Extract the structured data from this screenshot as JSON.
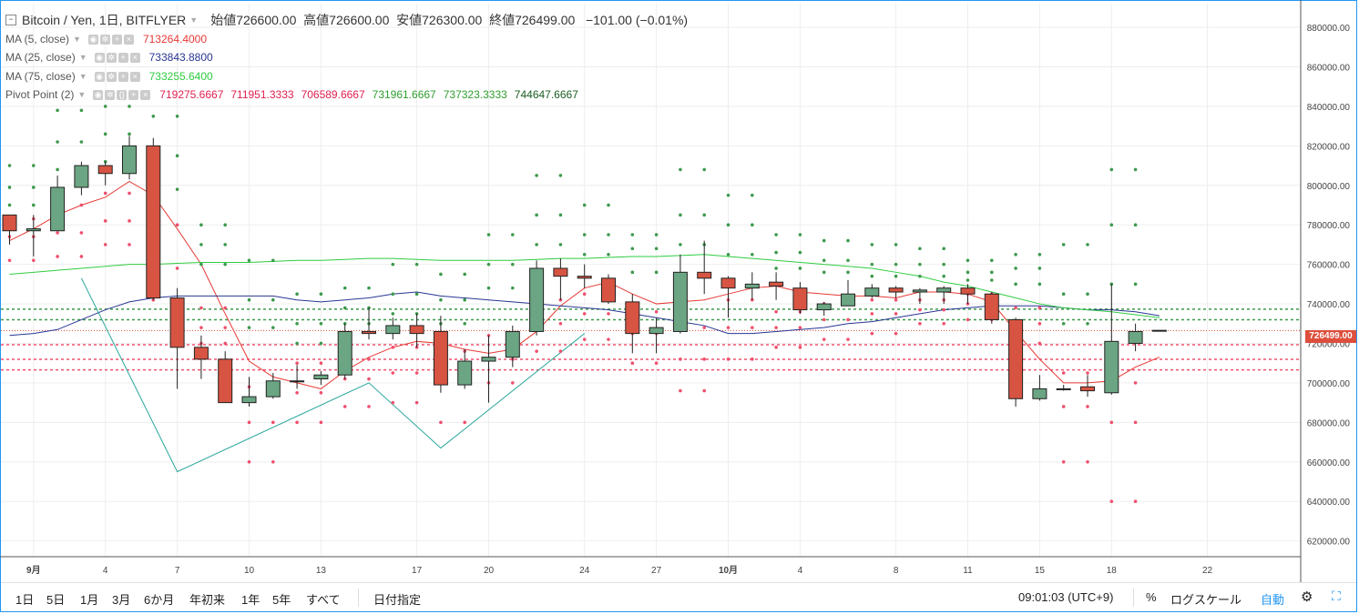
{
  "header": {
    "symbol": "Bitcoin / Yen, 1日, BITFLYER",
    "ohlc": {
      "open_label": "始値",
      "open": "726600.00",
      "high_label": "高値",
      "high": "726600.00",
      "low_label": "安値",
      "low": "726300.00",
      "close_label": "終値",
      "close": "726499.00",
      "change": "−101.00 (−0.01%)"
    }
  },
  "indicators": [
    {
      "name": "MA (5, close)",
      "value": "713264.4000",
      "color": "#e53935"
    },
    {
      "name": "MA (25, close)",
      "value": "733843.8800",
      "color": "#283593"
    },
    {
      "name": "MA (75, close)",
      "value": "733255.6400",
      "color": "#2ecc40"
    }
  ],
  "pivot": {
    "name": "Pivot Point (2)",
    "values": [
      "719275.6667",
      "711951.3333",
      "706589.6667",
      "731961.6667",
      "737323.3333",
      "744647.6667"
    ],
    "colors": [
      "#e0204f",
      "#e0204f",
      "#e0204f",
      "#2e9e2e",
      "#2e9e2e",
      "#1b5e20"
    ]
  },
  "price_tag": "726499.00",
  "chart_data": {
    "type": "candlestick",
    "title": "Bitcoin / Yen, 1日, BITFLYER",
    "ylim": [
      612000,
      892000
    ],
    "y_ticks": [
      620000,
      640000,
      660000,
      680000,
      700000,
      720000,
      740000,
      760000,
      780000,
      800000,
      820000,
      840000,
      860000,
      880000
    ],
    "x_ticks": [
      {
        "label": "9月",
        "i": 1,
        "bold": true
      },
      {
        "label": "4",
        "i": 4
      },
      {
        "label": "7",
        "i": 7
      },
      {
        "label": "10",
        "i": 10
      },
      {
        "label": "13",
        "i": 13
      },
      {
        "label": "17",
        "i": 17
      },
      {
        "label": "20",
        "i": 20
      },
      {
        "label": "24",
        "i": 24
      },
      {
        "label": "27",
        "i": 27
      },
      {
        "label": "10月",
        "i": 30,
        "bold": true
      },
      {
        "label": "4",
        "i": 33
      },
      {
        "label": "8",
        "i": 37
      },
      {
        "label": "11",
        "i": 40
      },
      {
        "label": "15",
        "i": 43
      },
      {
        "label": "18",
        "i": 46
      },
      {
        "label": "22",
        "i": 50
      }
    ],
    "candles": [
      [
        785000,
        785000,
        770000,
        777000
      ],
      [
        777000,
        785000,
        764000,
        778000
      ],
      [
        777000,
        805000,
        777000,
        799000
      ],
      [
        799000,
        812000,
        795000,
        810000
      ],
      [
        810000,
        812000,
        800000,
        806000
      ],
      [
        806000,
        825000,
        803000,
        820000
      ],
      [
        820000,
        824000,
        742000,
        743000
      ],
      [
        743000,
        748000,
        697000,
        718000
      ],
      [
        718000,
        724000,
        702000,
        712000
      ],
      [
        712000,
        716000,
        690000,
        690000
      ],
      [
        690000,
        703000,
        688000,
        693000
      ],
      [
        693000,
        705000,
        692000,
        701000
      ],
      [
        701000,
        709000,
        697000,
        701000
      ],
      [
        702000,
        706000,
        699000,
        704000
      ],
      [
        704000,
        730000,
        702000,
        726000
      ],
      [
        726000,
        738000,
        722000,
        725000
      ],
      [
        725000,
        733000,
        722000,
        729000
      ],
      [
        729000,
        735000,
        718000,
        725000
      ],
      [
        726000,
        734000,
        695000,
        699000
      ],
      [
        699000,
        717000,
        697000,
        711000
      ],
      [
        711000,
        724000,
        690000,
        713000
      ],
      [
        713000,
        729000,
        708000,
        726000
      ],
      [
        726000,
        762000,
        724000,
        758000
      ],
      [
        758000,
        763000,
        742000,
        754000
      ],
      [
        754000,
        760000,
        748000,
        753000
      ],
      [
        753000,
        755000,
        740000,
        741000
      ],
      [
        741000,
        745000,
        715000,
        725000
      ],
      [
        725000,
        733000,
        715000,
        728000
      ],
      [
        726000,
        765000,
        725000,
        756000
      ],
      [
        756000,
        772000,
        745000,
        753000
      ],
      [
        753000,
        754000,
        733000,
        748000
      ],
      [
        748000,
        756000,
        742000,
        750000
      ],
      [
        751000,
        756000,
        742000,
        749000
      ],
      [
        748000,
        751000,
        735000,
        737000
      ],
      [
        737000,
        741000,
        734000,
        740000
      ],
      [
        739000,
        752000,
        739000,
        745000
      ],
      [
        744000,
        750000,
        743000,
        748000
      ],
      [
        748000,
        749000,
        743000,
        746000
      ],
      [
        746000,
        748000,
        740000,
        747000
      ],
      [
        746000,
        749000,
        740000,
        748000
      ],
      [
        748000,
        750000,
        740000,
        745000
      ],
      [
        745000,
        746000,
        730000,
        732000
      ],
      [
        732000,
        733000,
        688000,
        692000
      ],
      [
        692000,
        704000,
        691000,
        697000
      ],
      [
        697000,
        699000,
        696000,
        697000
      ],
      [
        698000,
        704000,
        693000,
        696000
      ],
      [
        695000,
        750000,
        694000,
        721000
      ],
      [
        720000,
        730000,
        716000,
        726000
      ],
      [
        726600,
        726600,
        726300,
        726499
      ]
    ],
    "series": [
      {
        "name": "MA (5, close)",
        "color": "#e53935",
        "values": [
          772000,
          778000,
          785000,
          790000,
          794000,
          802000,
          795000,
          778000,
          760000,
          735000,
          711000,
          703000,
          700000,
          697000,
          706000,
          713000,
          718000,
          721000,
          720000,
          717000,
          715000,
          717000,
          726000,
          739000,
          748000,
          751000,
          745000,
          740000,
          741000,
          742000,
          745000,
          748000,
          749000,
          746000,
          745000,
          744000,
          744000,
          743000,
          746000,
          746000,
          745000,
          741000,
          726000,
          712000,
          700000,
          700000,
          701000,
          708000,
          713000
        ]
      },
      {
        "name": "MA (25, close)",
        "color": "#283593",
        "values": [
          724000,
          725000,
          727000,
          732000,
          737000,
          741000,
          743000,
          744000,
          744000,
          744000,
          744000,
          744000,
          742000,
          741000,
          742000,
          743000,
          745000,
          746000,
          744000,
          743000,
          742000,
          741000,
          740000,
          739000,
          738000,
          737000,
          735000,
          733000,
          731000,
          729000,
          725000,
          725000,
          726000,
          727000,
          728000,
          730000,
          731000,
          733000,
          735000,
          737000,
          738000,
          739000,
          739000,
          739000,
          738000,
          737000,
          737000,
          736000,
          734000
        ]
      },
      {
        "name": "MA (75, close)",
        "color": "#2ecc40",
        "values": [
          755000,
          756000,
          757000,
          758000,
          759000,
          760000,
          760000,
          760500,
          761000,
          761000,
          761000,
          761500,
          762000,
          762000,
          762500,
          763000,
          763000,
          762500,
          762000,
          762000,
          762000,
          762000,
          762500,
          763000,
          763000,
          763500,
          764000,
          764000,
          764500,
          765000,
          764000,
          763000,
          762000,
          761000,
          760000,
          759000,
          758000,
          756000,
          754000,
          751000,
          749000,
          746000,
          743000,
          740000,
          738000,
          737000,
          736000,
          734500,
          733000
        ]
      }
    ],
    "zigzag": {
      "color": "#26a69a",
      "points": [
        [
          3,
          753000
        ],
        [
          7,
          655000
        ],
        [
          15,
          700000
        ],
        [
          18,
          667000
        ],
        [
          24,
          725000
        ]
      ]
    },
    "pivot_dots": {
      "resist_color": "#3d9a4c",
      "support_color": "#f0506e",
      "periods": [
        [
          0,
          2
        ],
        [
          2,
          4
        ],
        [
          4,
          6
        ],
        [
          6,
          8
        ],
        [
          8,
          10
        ],
        [
          10,
          12
        ],
        [
          12,
          14
        ],
        [
          14,
          16
        ],
        [
          16,
          18
        ],
        [
          18,
          20
        ],
        [
          20,
          22
        ],
        [
          22,
          24
        ],
        [
          24,
          26
        ],
        [
          26,
          28
        ],
        [
          28,
          30
        ],
        [
          30,
          32
        ],
        [
          32,
          34
        ],
        [
          34,
          36
        ],
        [
          36,
          38
        ],
        [
          38,
          40
        ],
        [
          40,
          42
        ],
        [
          42,
          44
        ],
        [
          44,
          46
        ],
        [
          46,
          48
        ]
      ],
      "levels": [
        [
          810000,
          799000,
          790000,
          783000,
          774000,
          762000
        ],
        [
          838000,
          822000,
          808000,
          790000,
          776000,
          764000
        ],
        [
          840000,
          826000,
          812000,
          796000,
          782000,
          770000
        ],
        [
          835000,
          815000,
          798000,
          780000,
          758000,
          742000
        ],
        [
          780000,
          770000,
          760000,
          738000,
          728000,
          720000
        ],
        [
          762000,
          742000,
          728000,
          698000,
          680000,
          660000
        ],
        [
          745000,
          730000,
          720000,
          710000,
          695000,
          680000
        ],
        [
          748000,
          738000,
          730000,
          712000,
          702000,
          688000
        ],
        [
          760000,
          745000,
          735000,
          718000,
          705000,
          690000
        ],
        [
          755000,
          742000,
          730000,
          716000,
          700000,
          680000
        ],
        [
          775000,
          760000,
          748000,
          724000,
          712000,
          700000
        ],
        [
          805000,
          785000,
          770000,
          742000,
          730000,
          716000
        ],
        [
          790000,
          775000,
          765000,
          745000,
          735000,
          722000
        ],
        [
          775000,
          768000,
          756000,
          736000,
          725000,
          710000
        ],
        [
          808000,
          785000,
          770000,
          728000,
          712000,
          696000
        ],
        [
          795000,
          780000,
          765000,
          742000,
          728000,
          712000
        ],
        [
          775000,
          766000,
          758000,
          736000,
          728000,
          718000
        ],
        [
          772000,
          762000,
          756000,
          740000,
          732000,
          722000
        ],
        [
          770000,
          760000,
          754000,
          742000,
          735000,
          725000
        ],
        [
          768000,
          760000,
          754000,
          742000,
          737000,
          730000
        ],
        [
          762000,
          756000,
          752000,
          745000,
          740000,
          732000
        ],
        [
          765000,
          758000,
          750000,
          738000,
          730000,
          720000
        ],
        [
          770000,
          745000,
          730000,
          705000,
          688000,
          660000
        ],
        [
          808000,
          780000,
          750000,
          700000,
          680000,
          640000
        ]
      ]
    }
  },
  "bottom": {
    "timeframes": [
      "1日",
      "5日",
      "1月",
      "3月",
      "6か月",
      "年初来",
      "1年",
      "5年",
      "すべて"
    ],
    "date_range": "日付指定",
    "time": "09:01:03 (UTC+9)",
    "percent": "%",
    "log_scale": "ログスケール",
    "auto": "自動"
  }
}
